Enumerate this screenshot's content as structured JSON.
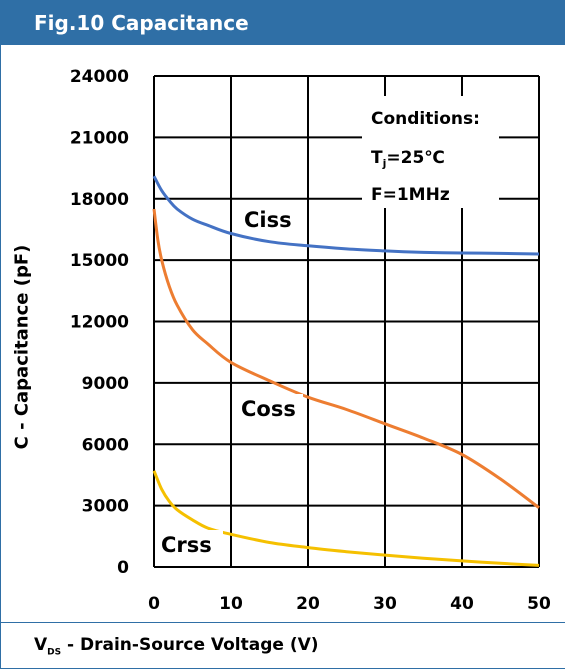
{
  "figure_title": "Fig.10 Capacitance",
  "conditions": {
    "heading": "Conditions:",
    "tj_prefix": "T",
    "tj_sub": "j",
    "tj_value": "=25℃",
    "freq": "F=1MHz"
  },
  "colors": {
    "title_bar": "#2f6fa6",
    "ciss": "#4472c4",
    "coss": "#ed7d31",
    "crss": "#f5c000"
  },
  "chart_data": {
    "type": "line",
    "xlabel_main": "V",
    "xlabel_sub": "DS",
    "xlabel_rest": " - Drain-Source Voltage (V)",
    "ylabel": "C - Capacitance (pF)",
    "xlim": [
      0,
      50
    ],
    "ylim": [
      0,
      24000
    ],
    "x_ticks": [
      0,
      10,
      20,
      30,
      40,
      50
    ],
    "y_ticks": [
      0,
      3000,
      6000,
      9000,
      12000,
      15000,
      18000,
      21000,
      24000
    ],
    "grid": true,
    "series": [
      {
        "name": "Ciss",
        "x": [
          0,
          1,
          2,
          3,
          5,
          7,
          10,
          15,
          20,
          25,
          30,
          35,
          40,
          45,
          50
        ],
        "values": [
          19100,
          18400,
          17900,
          17500,
          17000,
          16700,
          16300,
          15900,
          15700,
          15550,
          15450,
          15380,
          15350,
          15330,
          15300
        ]
      },
      {
        "name": "Coss",
        "x": [
          0,
          0.5,
          1,
          2,
          3,
          5,
          7,
          10,
          15,
          20,
          25,
          30,
          35,
          40,
          45,
          50
        ],
        "values": [
          17500,
          16000,
          15000,
          13700,
          12800,
          11600,
          10900,
          10000,
          9100,
          8300,
          7700,
          7000,
          6300,
          5500,
          4300,
          2900
        ]
      },
      {
        "name": "Crss",
        "x": [
          0,
          1,
          2,
          3,
          5,
          7,
          10,
          15,
          20,
          25,
          30,
          35,
          40,
          45,
          50
        ],
        "values": [
          4700,
          3800,
          3200,
          2800,
          2300,
          1900,
          1600,
          1200,
          950,
          750,
          580,
          430,
          300,
          180,
          80
        ]
      }
    ]
  }
}
